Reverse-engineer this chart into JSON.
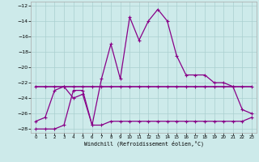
{
  "xlabel": "Windchill (Refroidissement éolien,°C)",
  "xlim": [
    -0.5,
    23.5
  ],
  "ylim": [
    -28.5,
    -11.5
  ],
  "yticks": [
    -28,
    -26,
    -24,
    -22,
    -20,
    -18,
    -16,
    -14,
    -12
  ],
  "xticks": [
    0,
    1,
    2,
    3,
    4,
    5,
    6,
    7,
    8,
    9,
    10,
    11,
    12,
    13,
    14,
    15,
    16,
    17,
    18,
    19,
    20,
    21,
    22,
    23
  ],
  "bg_color": "#cdeaea",
  "line_color": "#880088",
  "grid_color": "#aacfcf",
  "line1_x": [
    0,
    1,
    2,
    3,
    4,
    5,
    6,
    7,
    8,
    9,
    10,
    11,
    12,
    13,
    14,
    15,
    16,
    17,
    18,
    19,
    20,
    21,
    22,
    23
  ],
  "line1_y": [
    -28,
    -28,
    -28,
    -27.5,
    -23,
    -23,
    -27.5,
    -27.5,
    -27,
    -27,
    -27,
    -27,
    -27,
    -27,
    -27,
    -27,
    -27,
    -27,
    -27,
    -27,
    -27,
    -27,
    -27,
    -26.5
  ],
  "line2_x": [
    0,
    1,
    2,
    3,
    4,
    5,
    6,
    7,
    8,
    9,
    10,
    11,
    12,
    13,
    14,
    15,
    16,
    17,
    18,
    19,
    20,
    21,
    22,
    23
  ],
  "line2_y": [
    -22.5,
    -22.5,
    -22.5,
    -22.5,
    -22.5,
    -22.5,
    -22.5,
    -22.5,
    -22.5,
    -22.5,
    -22.5,
    -22.5,
    -22.5,
    -22.5,
    -22.5,
    -22.5,
    -22.5,
    -22.5,
    -22.5,
    -22.5,
    -22.5,
    -22.5,
    -22.5,
    -22.5
  ],
  "line3_x": [
    0,
    1,
    2,
    3,
    4,
    5,
    6,
    7,
    8,
    9,
    10,
    11,
    12,
    13,
    14,
    15,
    16,
    17,
    18,
    19,
    20,
    21,
    22,
    23
  ],
  "line3_y": [
    -27,
    -26.5,
    -23,
    -22.5,
    -24,
    -23.5,
    -27.5,
    -21.5,
    -17,
    -21.5,
    -13.5,
    -16.5,
    -14,
    -12.5,
    -14,
    -18.5,
    -21,
    -21,
    -21,
    -22,
    -22,
    -22.5,
    -25.5,
    -26
  ]
}
